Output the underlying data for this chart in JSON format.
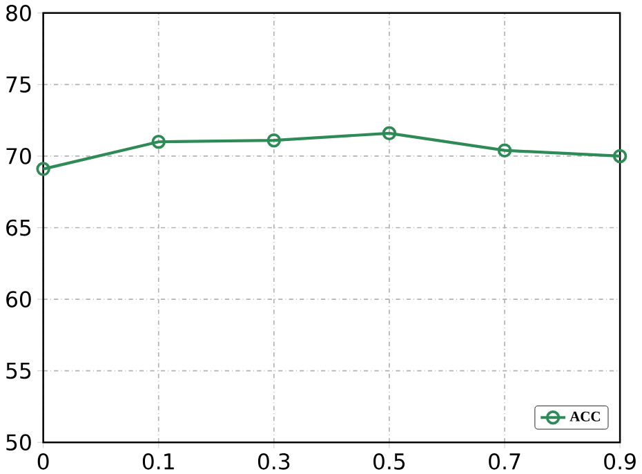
{
  "chart_data": {
    "type": "line",
    "categories": [
      "0",
      "0.1",
      "0.3",
      "0.5",
      "0.7",
      "0.9"
    ],
    "series": [
      {
        "name": "ACC",
        "color": "#2e8b57",
        "values": [
          69.1,
          71.0,
          71.1,
          71.6,
          70.4,
          70.0
        ]
      }
    ],
    "ylim": [
      50,
      80
    ],
    "yticks": [
      50,
      55,
      60,
      65,
      70,
      75,
      80
    ],
    "grid": true,
    "legend": "bottom right",
    "marker": "circle",
    "line_style": "solid"
  }
}
